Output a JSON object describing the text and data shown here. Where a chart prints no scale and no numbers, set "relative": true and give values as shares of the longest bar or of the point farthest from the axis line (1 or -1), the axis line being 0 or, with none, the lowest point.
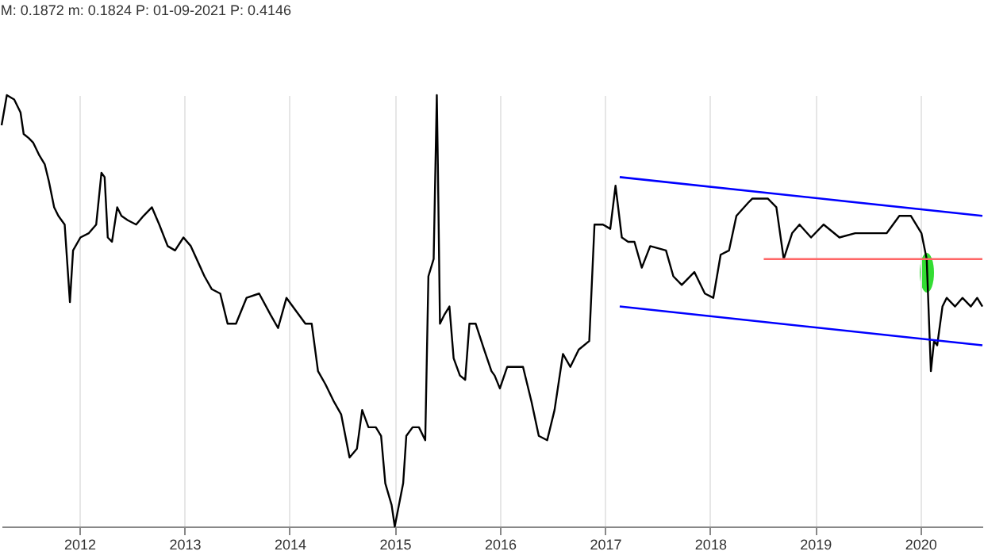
{
  "chart_data": {
    "type": "line",
    "relative": true,
    "annotations": [
      "M: 0.1872 m: 0.1824 P: 01-09-2021 P: 0.4146"
    ],
    "xlim": [
      2011.26,
      2020.59
    ],
    "xticks": [
      2012,
      2013,
      2014,
      2015,
      2016,
      2017,
      2018,
      2019,
      2020
    ],
    "grid": "x",
    "line_style": "solid",
    "series": [
      {
        "color": "#000000",
        "x": [
          2011.26,
          2011.31,
          2011.38,
          2011.44,
          2011.47,
          2011.52,
          2011.56,
          2011.62,
          2011.67,
          2011.71,
          2011.76,
          2011.8,
          2011.86,
          2011.91,
          2011.94,
          2012.01,
          2012.09,
          2012.16,
          2012.21,
          2012.24,
          2012.27,
          2012.31,
          2012.36,
          2012.4,
          2012.46,
          2012.54,
          2012.61,
          2012.69,
          2012.76,
          2012.84,
          2012.91,
          2012.99,
          2013.06,
          2013.19,
          2013.26,
          2013.34,
          2013.41,
          2013.49,
          2013.59,
          2013.71,
          2013.82,
          2013.89,
          2013.97,
          2014.06,
          2014.15,
          2014.21,
          2014.27,
          2014.34,
          2014.42,
          2014.49,
          2014.57,
          2014.64,
          2014.69,
          2014.75,
          2014.82,
          2014.87,
          2014.91,
          2014.97,
          2015.0,
          2015.08,
          2015.11,
          2015.17,
          2015.23,
          2015.29,
          2015.32,
          2015.37,
          2015.4,
          2015.41,
          2015.43,
          2015.47,
          2015.52,
          2015.56,
          2015.62,
          2015.67,
          2015.71,
          2015.77,
          2015.85,
          2015.92,
          2015.95,
          2016.0,
          2016.07,
          2016.22,
          2016.3,
          2016.37,
          2016.45,
          2016.52,
          2016.6,
          2016.67,
          2016.75,
          2016.85,
          2016.9,
          2016.98,
          2017.05,
          2017.1,
          2017.16,
          2017.22,
          2017.28,
          2017.35,
          2017.43,
          2017.58,
          2017.65,
          2017.73,
          2017.85,
          2017.95,
          2018.03,
          2018.1,
          2018.18,
          2018.25,
          2018.36,
          2018.4,
          2018.55,
          2018.63,
          2018.7,
          2018.78,
          2018.85,
          2018.96,
          2019.08,
          2019.23,
          2019.38,
          2019.53,
          2019.68,
          2019.8,
          2019.91,
          2020.01,
          2020.06,
          2020.1,
          2020.13,
          2020.16,
          2020.21,
          2020.25,
          2020.33,
          2020.4,
          2020.48,
          2020.54,
          2020.59
        ],
        "values": [
          0.93,
          1.0,
          0.99,
          0.96,
          0.91,
          0.9,
          0.89,
          0.86,
          0.84,
          0.8,
          0.74,
          0.72,
          0.7,
          0.52,
          0.64,
          0.67,
          0.68,
          0.7,
          0.82,
          0.81,
          0.67,
          0.66,
          0.74,
          0.72,
          0.71,
          0.7,
          0.72,
          0.74,
          0.7,
          0.65,
          0.64,
          0.67,
          0.65,
          0.58,
          0.55,
          0.54,
          0.47,
          0.47,
          0.53,
          0.54,
          0.49,
          0.46,
          0.53,
          0.5,
          0.47,
          0.47,
          0.36,
          0.33,
          0.29,
          0.26,
          0.16,
          0.18,
          0.27,
          0.23,
          0.23,
          0.21,
          0.1,
          0.05,
          0.0,
          0.1,
          0.21,
          0.23,
          0.23,
          0.2,
          0.58,
          0.62,
          1.0,
          0.84,
          0.47,
          0.49,
          0.51,
          0.39,
          0.35,
          0.34,
          0.47,
          0.47,
          0.41,
          0.36,
          0.35,
          0.32,
          0.37,
          0.37,
          0.29,
          0.21,
          0.2,
          0.27,
          0.4,
          0.37,
          0.41,
          0.43,
          0.7,
          0.7,
          0.69,
          0.79,
          0.67,
          0.66,
          0.66,
          0.6,
          0.65,
          0.64,
          0.58,
          0.56,
          0.59,
          0.54,
          0.53,
          0.63,
          0.64,
          0.72,
          0.75,
          0.76,
          0.76,
          0.74,
          0.62,
          0.68,
          0.7,
          0.67,
          0.7,
          0.67,
          0.68,
          0.68,
          0.68,
          0.72,
          0.72,
          0.68,
          0.62,
          0.36,
          0.43,
          0.42,
          0.51,
          0.53,
          0.51,
          0.53,
          0.51,
          0.53,
          0.51
        ]
      },
      {
        "type": "line",
        "color": "#0000ff",
        "x": [
          2017.14,
          2020.59
        ],
        "values": [
          0.81,
          0.72
        ]
      },
      {
        "type": "line",
        "color": "#0000ff",
        "x": [
          2017.14,
          2020.59
        ],
        "values": [
          0.51,
          0.42
        ]
      },
      {
        "type": "line",
        "color": "#ff6666",
        "x": [
          2018.51,
          2020.59
        ],
        "values": [
          0.62,
          0.62
        ]
      }
    ]
  }
}
